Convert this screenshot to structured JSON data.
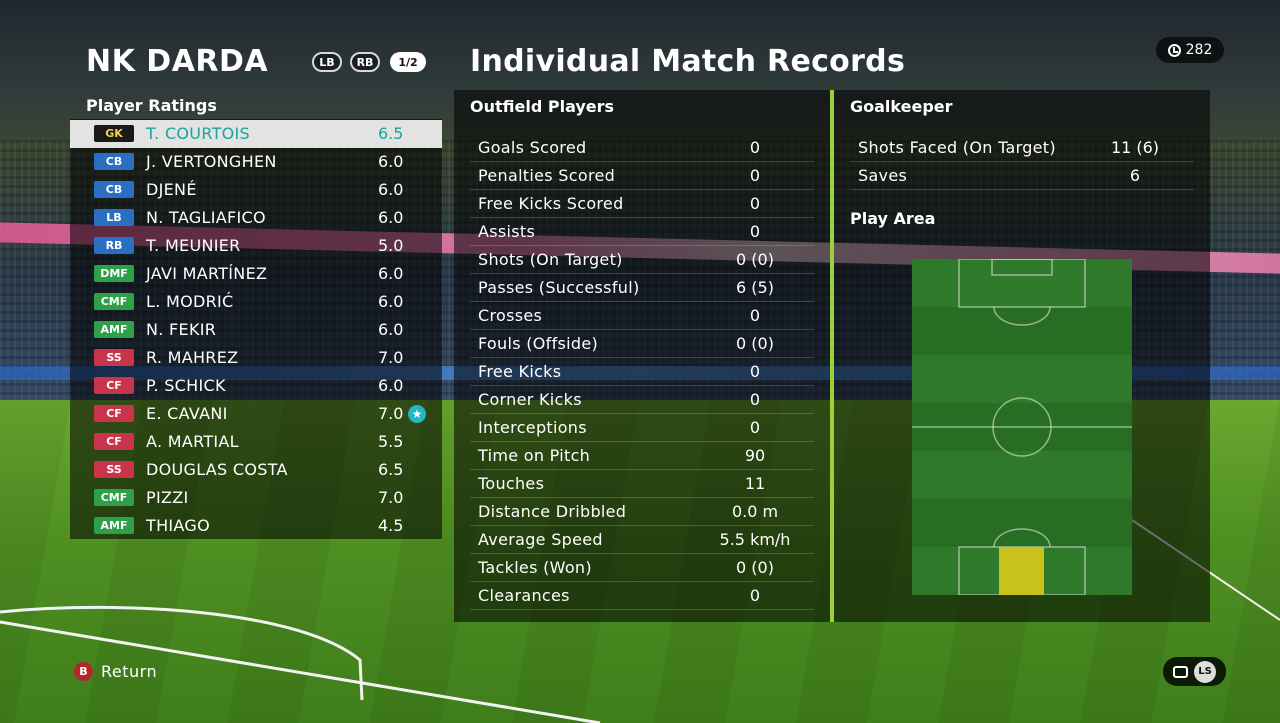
{
  "header": {
    "team_name": "NK DARDA",
    "lb_label": "LB",
    "rb_label": "RB",
    "page_indicator": "1/2",
    "title": "Individual Match Records",
    "timer": "282"
  },
  "player_ratings": {
    "label": "Player Ratings",
    "players": [
      {
        "pos": "GK",
        "name": "T. COURTOIS",
        "rating": "6.5",
        "group": "gk",
        "selected": true
      },
      {
        "pos": "CB",
        "name": "J. VERTONGHEN",
        "rating": "6.0",
        "group": "def"
      },
      {
        "pos": "CB",
        "name": "DJENÉ",
        "rating": "6.0",
        "group": "def"
      },
      {
        "pos": "LB",
        "name": "N. TAGLIAFICO",
        "rating": "6.0",
        "group": "def"
      },
      {
        "pos": "RB",
        "name": "T. MEUNIER",
        "rating": "5.0",
        "group": "def"
      },
      {
        "pos": "DMF",
        "name": "JAVI MARTÍNEZ",
        "rating": "6.0",
        "group": "mid"
      },
      {
        "pos": "CMF",
        "name": "L. MODRIĆ",
        "rating": "6.0",
        "group": "mid"
      },
      {
        "pos": "AMF",
        "name": "N. FEKIR",
        "rating": "6.0",
        "group": "mid"
      },
      {
        "pos": "SS",
        "name": "R. MAHREZ",
        "rating": "7.0",
        "group": "fwd"
      },
      {
        "pos": "CF",
        "name": "P. SCHICK",
        "rating": "6.0",
        "group": "fwd"
      },
      {
        "pos": "CF",
        "name": "E. CAVANI",
        "rating": "7.0",
        "group": "fwd",
        "star": true
      },
      {
        "pos": "CF",
        "name": "A. MARTIAL",
        "rating": "5.5",
        "group": "fwd"
      },
      {
        "pos": "SS",
        "name": "DOUGLAS COSTA",
        "rating": "6.5",
        "group": "fwd"
      },
      {
        "pos": "CMF",
        "name": "PIZZI",
        "rating": "7.0",
        "group": "mid"
      },
      {
        "pos": "AMF",
        "name": "THIAGO",
        "rating": "4.5",
        "group": "mid"
      }
    ]
  },
  "outfield": {
    "label": "Outfield Players",
    "stats": [
      {
        "label": "Goals Scored",
        "value": "0"
      },
      {
        "label": "Penalties Scored",
        "value": "0"
      },
      {
        "label": "Free Kicks Scored",
        "value": "0"
      },
      {
        "label": "Assists",
        "value": "0"
      },
      {
        "label": "Shots (On Target)",
        "value": "0 (0)"
      },
      {
        "label": "Passes (Successful)",
        "value": "6 (5)"
      },
      {
        "label": "Crosses",
        "value": "0"
      },
      {
        "label": "Fouls (Offside)",
        "value": "0 (0)"
      },
      {
        "label": "Free Kicks",
        "value": "0"
      },
      {
        "label": "Corner Kicks",
        "value": "0"
      },
      {
        "label": "Interceptions",
        "value": "0"
      },
      {
        "label": "Time on Pitch",
        "value": "90"
      },
      {
        "label": "Touches",
        "value": "11"
      },
      {
        "label": "Distance Dribbled",
        "value": "0.0 m"
      },
      {
        "label": "Average Speed",
        "value": "5.5 km/h"
      },
      {
        "label": "Tackles (Won)",
        "value": "0 (0)"
      },
      {
        "label": "Clearances",
        "value": "0"
      }
    ]
  },
  "goalkeeper": {
    "label": "Goalkeeper",
    "stats": [
      {
        "label": "Shots Faced (On Target)",
        "value": "11 (6)"
      },
      {
        "label": "Saves",
        "value": "6"
      }
    ]
  },
  "play_area": {
    "label": "Play Area",
    "heat_zone": "own-penalty-box"
  },
  "footer": {
    "return_button": "B",
    "return_label": "Return",
    "ls_label": "LS"
  },
  "icons": {
    "timer": "clock-icon",
    "return": "b-button-icon",
    "chat": "chat-icon",
    "star": "star-icon"
  }
}
